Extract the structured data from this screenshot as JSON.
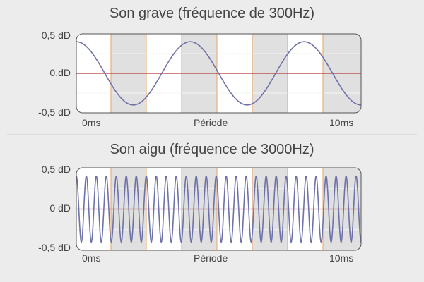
{
  "colors": {
    "background": "#ececec",
    "panel_fill": "#ffffff",
    "panel_band": "#e0e0e0",
    "frame": "#555555",
    "vertical_grid": "#e6a46a",
    "zero_line": "#b23a3a",
    "wave": "#6f72a8"
  },
  "chart_data": [
    {
      "type": "line",
      "title": "Son grave (fréquence de 300Hz)",
      "xlabel": "Période",
      "x_tick_labels": [
        "0ms",
        "10ms"
      ],
      "y_tick_labels": [
        "0,5 dD",
        "0.dD",
        "-0,5 dD"
      ],
      "y_tick_values": [
        0.5,
        0,
        -0.5
      ],
      "xlim": [
        0,
        10
      ],
      "ylim": [
        -0.5,
        0.5
      ],
      "grid": true,
      "series": [
        {
          "frequency_hz": 300,
          "amplitude": 0.4,
          "x_range_ms": [
            0,
            10
          ],
          "waveform": "cosine"
        }
      ]
    },
    {
      "type": "line",
      "title": "Son aigu (fréquence de 3000Hz)",
      "xlabel": "Période",
      "x_tick_labels": [
        "0ms",
        "10ms"
      ],
      "y_tick_labels": [
        "0,5 dD",
        "0 dD",
        "-0,5 dD"
      ],
      "y_tick_values": [
        0.5,
        0,
        -0.5
      ],
      "xlim": [
        0,
        10
      ],
      "ylim": [
        -0.5,
        0.5
      ],
      "grid": true,
      "series": [
        {
          "frequency_hz": 3000,
          "amplitude": 0.4,
          "x_range_ms": [
            0,
            10
          ],
          "waveform": "cosine"
        }
      ]
    }
  ]
}
